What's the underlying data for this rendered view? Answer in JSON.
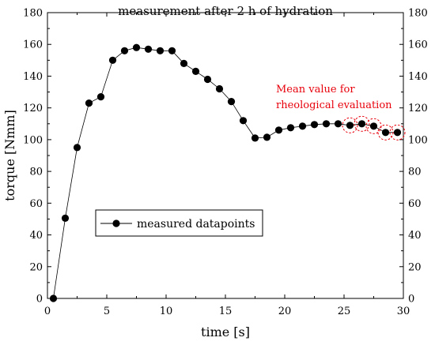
{
  "chart_data": {
    "type": "line",
    "title": "measurement after 2 h of hydration",
    "xlabel": "time [s]",
    "ylabel": "torque [Nmm]",
    "xlim": [
      0,
      30
    ],
    "ylim": [
      0,
      180
    ],
    "xticks": [
      "0",
      "5",
      "10",
      "15",
      "20",
      "25",
      "30"
    ],
    "yticks": [
      "0",
      "20",
      "40",
      "60",
      "80",
      "100",
      "120",
      "140",
      "160",
      "180"
    ],
    "right_axis_mirrored": true,
    "grid": false,
    "series": [
      {
        "name": "measured datapoints",
        "marker": "filled-circle",
        "line": true,
        "x": [
          0.5,
          1.5,
          2.5,
          3.5,
          4.5,
          5.5,
          6.5,
          7.5,
          8.5,
          9.5,
          10.5,
          11.5,
          12.5,
          13.5,
          14.5,
          15.5,
          16.5,
          17.5,
          18.5,
          19.5,
          20.5,
          21.5,
          22.5,
          23.5,
          24.5,
          25.5,
          26.5,
          27.5,
          28.5,
          29.5
        ],
        "y": [
          0,
          50.5,
          95,
          123,
          127,
          150,
          156,
          158,
          157,
          156,
          156,
          148,
          143,
          138,
          132,
          124,
          112,
          101,
          101.5,
          106,
          107.5,
          108.5,
          109.5,
          110,
          110,
          109,
          110,
          108.5,
          104.5,
          104.5
        ]
      }
    ],
    "legend": {
      "placement": "center-left",
      "entries": [
        "measured datapoints"
      ]
    },
    "annotation": {
      "lines": [
        "Mean value for",
        "rheological evaluation"
      ],
      "color": "#e8000b",
      "highlighted_x": [
        25.5,
        26.5,
        27.5,
        28.5,
        29.5
      ]
    }
  }
}
